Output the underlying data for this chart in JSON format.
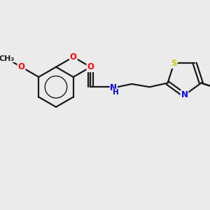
{
  "bg_color": "#ebebeb",
  "bond_color": "#1a1a1a",
  "atom_colors": {
    "O": "#ff0000",
    "N": "#0000ee",
    "S": "#cccc00",
    "C": "#1a1a1a"
  },
  "font_size": 8.5,
  "lw": 1.6
}
